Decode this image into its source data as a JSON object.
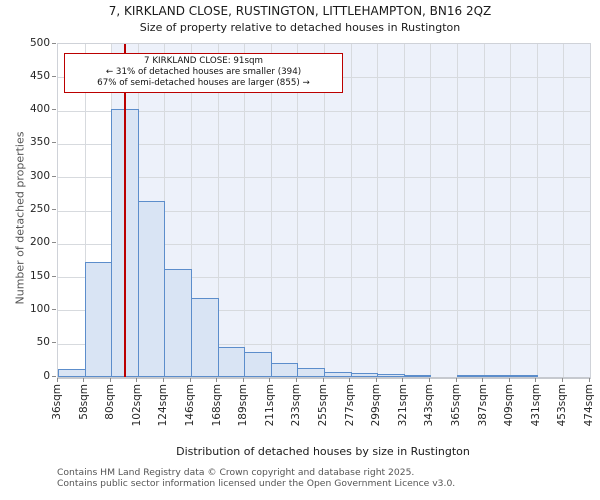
{
  "title": "7, KIRKLAND CLOSE, RUSTINGTON, LITTLEHAMPTON, BN16 2QZ",
  "subtitle": "Size of property relative to detached houses in Rustington",
  "annotation": {
    "line1": "7 KIRKLAND CLOSE: 91sqm",
    "line2": "← 31% of detached houses are smaller (394)",
    "line3": "67% of semi-detached houses are larger (855) →"
  },
  "footer": {
    "line1": "Contains HM Land Registry data © Crown copyright and database right 2025.",
    "line2": "Contains public sector information licensed under the Open Government Licence v3.0."
  },
  "chart_data": {
    "type": "bar",
    "title": "7, KIRKLAND CLOSE, RUSTINGTON, LITTLEHAMPTON, BN16 2QZ",
    "subtitle": "Size of property relative to detached houses in Rustington",
    "xlabel": "Distribution of detached houses by size in Rustington",
    "ylabel": "Number of detached properties",
    "categories": [
      "36sqm",
      "58sqm",
      "80sqm",
      "102sqm",
      "124sqm",
      "146sqm",
      "168sqm",
      "189sqm",
      "211sqm",
      "233sqm",
      "255sqm",
      "277sqm",
      "299sqm",
      "321sqm",
      "343sqm",
      "365sqm",
      "387sqm",
      "409sqm",
      "431sqm",
      "453sqm",
      "474sqm"
    ],
    "bin_edges_sqm": [
      36,
      58,
      80,
      102,
      124,
      146,
      168,
      189,
      211,
      233,
      255,
      277,
      299,
      321,
      343,
      365,
      387,
      409,
      431,
      453,
      474
    ],
    "values": [
      12,
      172,
      403,
      264,
      162,
      118,
      45,
      37,
      21,
      14,
      8,
      6,
      5,
      2,
      0,
      1,
      1,
      1,
      0,
      0
    ],
    "ylim": [
      0,
      500
    ],
    "ytick_step": 50,
    "grid": true,
    "legend": false,
    "marker": {
      "label": "91sqm",
      "value_sqm": 91
    },
    "shade_from_sqm": 80,
    "colors": {
      "bar_fill": "#d9e4f4",
      "bar_border": "#5c8dcb",
      "marker_line": "#bb0000",
      "annotation_border": "#bb0000",
      "shade_background": "#edf1fa",
      "grid": "#d7dade"
    }
  }
}
